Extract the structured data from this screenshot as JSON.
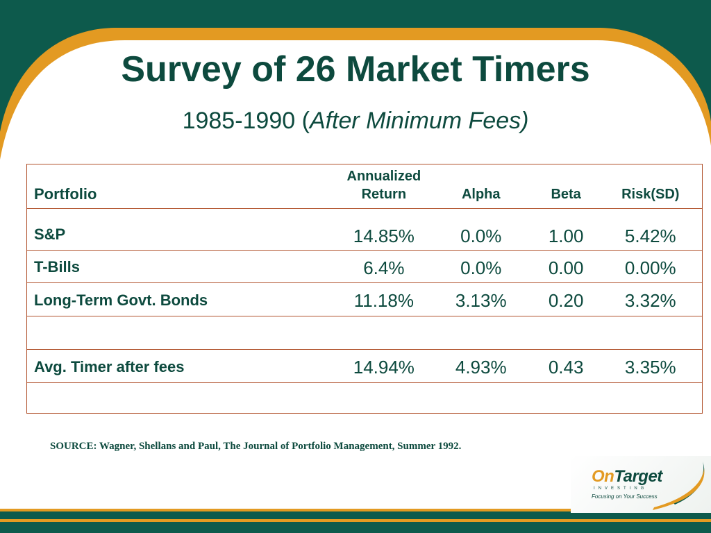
{
  "colors": {
    "teal": "#0d5a4c",
    "orange": "#e39a22",
    "title": "#0d4a3e",
    "border": "#b0502a"
  },
  "slide": {
    "title": "Survey of 26 Market Timers",
    "subtitle_plain": "1985-1990 (",
    "subtitle_italic": "After Minimum Fees)"
  },
  "table": {
    "headers": {
      "portfolio": "Portfolio",
      "return_line1": "Annualized",
      "return_line2": "Return",
      "alpha": "Alpha",
      "beta": "Beta",
      "risk": "Risk(SD)"
    },
    "rows": [
      {
        "name": "S&P",
        "return": "14.85%",
        "alpha": "0.0%",
        "beta": "1.00",
        "risk": "5.42%"
      },
      {
        "name": "T-Bills",
        "return": "6.4%",
        "alpha": "0.0%",
        "beta": "0.00",
        "risk": "0.00%"
      },
      {
        "name": "Long-Term Govt. Bonds",
        "return": "11.18%",
        "alpha": "3.13%",
        "beta": "0.20",
        "risk": "3.32%"
      },
      {
        "name": "",
        "return": "",
        "alpha": "",
        "beta": "",
        "risk": ""
      },
      {
        "name": "Avg. Timer after fees",
        "return": "14.94%",
        "alpha": "4.93%",
        "beta": "0.43",
        "risk": "3.35%"
      },
      {
        "name": "",
        "return": "",
        "alpha": "",
        "beta": "",
        "risk": ""
      }
    ]
  },
  "source": "SOURCE: Wagner, Shellans and Paul, The Journal of Portfolio Management, Summer 1992.",
  "logo": {
    "brand_on": "On",
    "brand_target": "Target",
    "brand_sub": "INVESTING",
    "tagline": "Focusing on Your Success"
  }
}
